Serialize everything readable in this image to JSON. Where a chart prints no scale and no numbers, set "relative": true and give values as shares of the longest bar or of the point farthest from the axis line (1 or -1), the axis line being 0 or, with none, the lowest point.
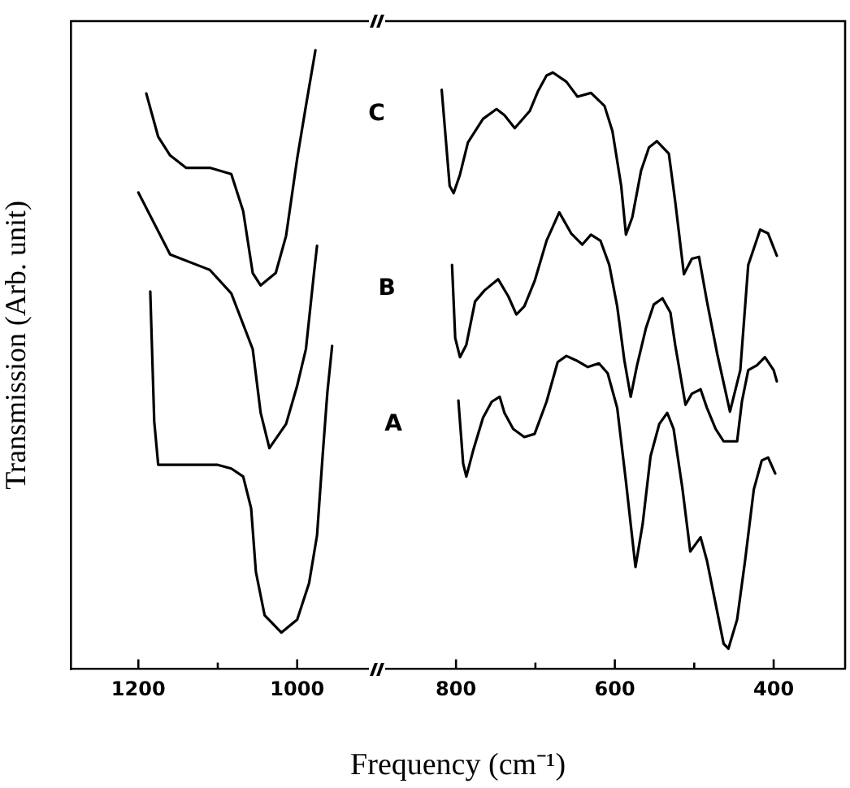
{
  "chart_data": {
    "type": "line",
    "relative": true,
    "tick_labels": "x",
    "xlabel": "Frequency (cm⁻¹)",
    "ylabel": "Transmission (Arb. unit)",
    "xlim": [
      1285,
      310
    ],
    "xticks": [
      1200,
      {
        "value": 1100,
        "label": null
      },
      1000,
      800,
      {
        "value": 700,
        "label": null
      },
      600,
      {
        "value": 500,
        "label": null
      },
      400
    ],
    "series": [
      {
        "name": "C",
        "color": "#000000",
        "x": [
          1190,
          1175,
          1160,
          1140,
          1110,
          1083,
          1068,
          1056,
          1046,
          1027,
          1014,
          1000,
          989,
          977,
          900,
          818,
          808,
          803,
          795,
          785,
          766,
          749,
          739,
          726,
          707,
          697,
          686,
          678,
          661,
          647,
          630,
          613,
          603,
          592,
          586,
          578,
          567,
          557,
          547,
          532,
          524,
          513,
          503,
          494,
          484,
          471,
          455,
          442,
          432,
          417,
          407,
          396
        ],
        "values": [
          0.93,
          0.86,
          0.83,
          0.81,
          0.81,
          0.8,
          0.74,
          0.64,
          0.62,
          0.64,
          0.7,
          0.825,
          0.91,
          1.0,
          null,
          0.936,
          0.781,
          0.769,
          0.799,
          0.851,
          0.889,
          0.905,
          0.895,
          0.874,
          0.902,
          0.933,
          0.959,
          0.964,
          0.949,
          0.925,
          0.931,
          0.91,
          0.869,
          0.781,
          0.702,
          0.73,
          0.805,
          0.843,
          0.853,
          0.833,
          0.756,
          0.638,
          0.663,
          0.666,
          0.594,
          0.509,
          0.416,
          0.483,
          0.653,
          0.71,
          0.704,
          0.668
        ]
      },
      {
        "name": "B",
        "color": "#000000",
        "x": [
          1200,
          1160,
          1110,
          1083,
          1056,
          1046,
          1035,
          1014,
          1000,
          989,
          979,
          975,
          900,
          805,
          801,
          795,
          787,
          776,
          764,
          747,
          734,
          724,
          714,
          701,
          686,
          670,
          655,
          641,
          630,
          618,
          607,
          597,
          588,
          580,
          572,
          561,
          551,
          540,
          530,
          524,
          511,
          503,
          492,
          484,
          473,
          463,
          446,
          440,
          432,
          421,
          411,
          400,
          396
        ],
        "values": [
          0.77,
          0.67,
          0.645,
          0.607,
          0.517,
          0.414,
          0.357,
          0.396,
          0.458,
          0.517,
          0.638,
          0.684,
          null,
          0.653,
          0.535,
          0.504,
          0.524,
          0.594,
          0.612,
          0.63,
          0.602,
          0.573,
          0.586,
          0.627,
          0.692,
          0.738,
          0.704,
          0.686,
          0.702,
          0.692,
          0.653,
          0.586,
          0.499,
          0.44,
          0.491,
          0.55,
          0.589,
          0.599,
          0.576,
          0.524,
          0.427,
          0.445,
          0.452,
          0.422,
          0.388,
          0.368,
          0.368,
          0.432,
          0.483,
          0.491,
          0.504,
          0.483,
          0.465
        ]
      },
      {
        "name": "A",
        "color": "#000000",
        "x": [
          1185,
          1180,
          1175,
          1130,
          1100,
          1083,
          1068,
          1058,
          1052,
          1041,
          1020,
          1000,
          985,
          975,
          968,
          962,
          956,
          900,
          797,
          791,
          787,
          778,
          766,
          755,
          745,
          739,
          728,
          714,
          701,
          686,
          672,
          661,
          649,
          634,
          620,
          609,
          597,
          586,
          574,
          565,
          555,
          544,
          534,
          526,
          515,
          505,
          492,
          484,
          473,
          463,
          457,
          446,
          436,
          425,
          415,
          407,
          398
        ],
        "values": [
          0.61,
          0.4,
          0.33,
          0.33,
          0.33,
          0.324,
          0.311,
          0.26,
          0.157,
          0.087,
          0.059,
          0.08,
          0.139,
          0.216,
          0.344,
          0.447,
          0.522,
          null,
          0.434,
          0.332,
          0.311,
          0.355,
          0.406,
          0.432,
          0.44,
          0.414,
          0.388,
          0.375,
          0.38,
          0.432,
          0.496,
          0.506,
          0.499,
          0.488,
          0.494,
          0.478,
          0.422,
          0.303,
          0.165,
          0.234,
          0.344,
          0.396,
          0.414,
          0.388,
          0.293,
          0.19,
          0.213,
          0.175,
          0.105,
          0.041,
          0.033,
          0.08,
          0.175,
          0.29,
          0.337,
          0.342,
          0.316
        ]
      }
    ]
  }
}
